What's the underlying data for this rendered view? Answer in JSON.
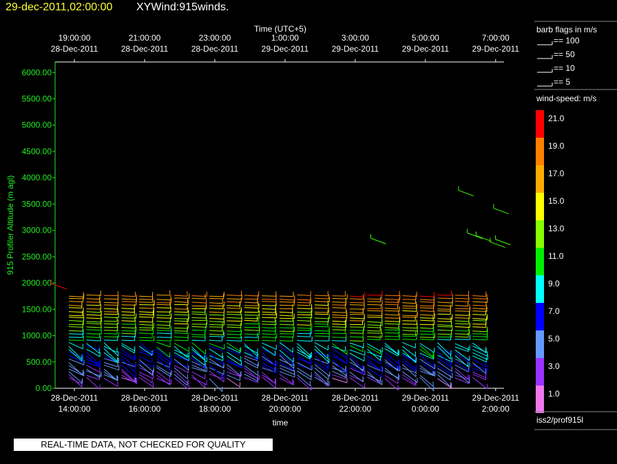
{
  "header": {
    "date_time": "29-dec-2011,02:00:00",
    "product": "XYWind:915winds."
  },
  "notice": "REAL-TIME DATA, NOT CHECKED FOR QUALITY",
  "source_label": "iss2/prof915l",
  "colors": {
    "background": "#000000",
    "axis": "#ffffff",
    "y_axis": "#22ee22",
    "title_date": "#ffff33"
  },
  "chart_data": {
    "type": "wind-barb",
    "xlabel_bottom": "time",
    "xlabel_top": "Time (UTC+5)",
    "ylabel": "915 Profiler Altitude (m agl)",
    "ylim": [
      0,
      6200
    ],
    "y_ticks": [
      "0.00",
      "500.00",
      "1000.00",
      "1500.00",
      "2000.00",
      "2500.00",
      "3000.00",
      "3500.00",
      "4000.00",
      "4500.00",
      "5000.00",
      "5500.00",
      "6000.00"
    ],
    "x_ticks_bottom": [
      {
        "date": "28-Dec-2011",
        "time": "14:00:00"
      },
      {
        "date": "28-Dec-2011",
        "time": "16:00:00"
      },
      {
        "date": "28-Dec-2011",
        "time": "18:00:00"
      },
      {
        "date": "28-Dec-2011",
        "time": "20:00:00"
      },
      {
        "date": "28-Dec-2011",
        "time": "22:00:00"
      },
      {
        "date": "29-Dec-2011",
        "time": "0:00:00"
      },
      {
        "date": "29-Dec-2011",
        "time": "2:00:00"
      }
    ],
    "x_ticks_top": [
      {
        "time": "19:00:00",
        "date": "28-Dec-2011"
      },
      {
        "time": "21:00:00",
        "date": "28-Dec-2011"
      },
      {
        "time": "23:00:00",
        "date": "28-Dec-2011"
      },
      {
        "time": "1:00:00",
        "date": "29-Dec-2011"
      },
      {
        "time": "3:00:00",
        "date": "29-Dec-2011"
      },
      {
        "time": "5:00:00",
        "date": "29-Dec-2011"
      },
      {
        "time": "7:00:00",
        "date": "29-Dec-2011"
      }
    ],
    "barb_legend": {
      "title": "barb flags in m/s",
      "items": [
        "== 100",
        "== 50",
        "== 10",
        "== 5"
      ]
    },
    "colorbar": {
      "title": "wind-speed: m/s",
      "levels": [
        {
          "label": "21.0",
          "color": "#ff0000"
        },
        {
          "label": "19.0",
          "color": "#ff8000"
        },
        {
          "label": "17.0",
          "color": "#ffaa00"
        },
        {
          "label": "15.0",
          "color": "#ffff00"
        },
        {
          "label": "13.0",
          "color": "#88ff00"
        },
        {
          "label": "11.0",
          "color": "#00ee00"
        },
        {
          "label": "9.0",
          "color": "#00ffff"
        },
        {
          "label": "7.0",
          "color": "#0000ff"
        },
        {
          "label": "5.0",
          "color": "#6699ff"
        },
        {
          "label": "3.0",
          "color": "#9933ff"
        },
        {
          "label": "1.0",
          "color": "#ee77ee"
        }
      ]
    },
    "profile_count": 24,
    "profile_interval_minutes": 30,
    "first_profile_hour": 14.0,
    "levels_m": [
      200,
      260,
      320,
      380,
      440,
      500,
      560,
      620,
      680,
      740,
      800,
      860,
      920,
      980,
      1040,
      1100,
      1160,
      1220,
      1280,
      1340,
      1400,
      1460,
      1520,
      1580,
      1640,
      1700,
      1760
    ]
  }
}
